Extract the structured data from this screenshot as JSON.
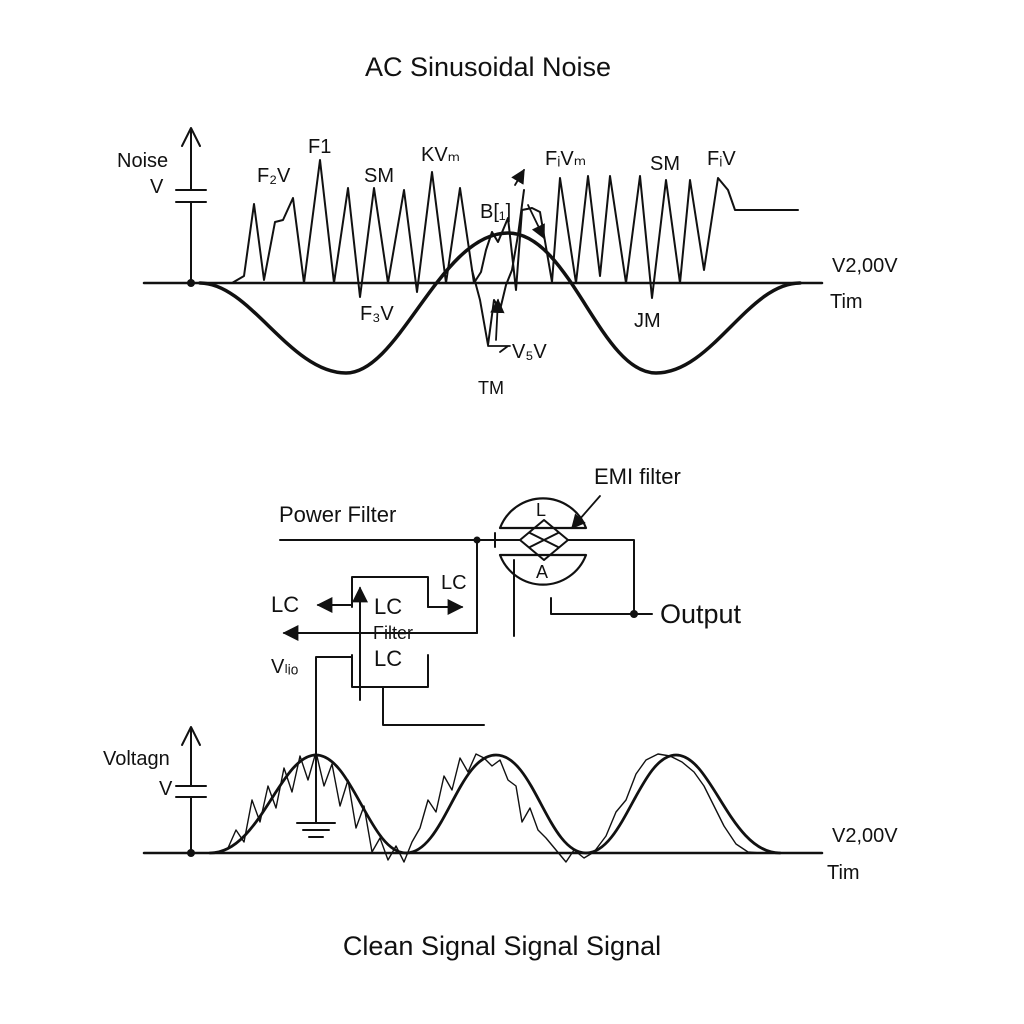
{
  "titles": {
    "top": "AC Sinusoidal Noise",
    "bottom": "Clean Signal Signal Signal"
  },
  "top_panel": {
    "axis_label": "Noise",
    "axis_unit": "V",
    "baseline_value": "V2,00V",
    "time_label": "Tim",
    "spike_labels": [
      "F₂V",
      "F1",
      "SM",
      "KVₘ",
      "FᵢVₘ",
      "SM",
      "FᵢV"
    ],
    "marker_labels": [
      "B[₁]",
      "F₃V",
      "V₅V",
      "TM",
      "JM"
    ]
  },
  "filter_panel": {
    "power_filter": "Power Filter",
    "emi_filter": "EMI filter",
    "emi_top": "L",
    "emi_bottom": "A",
    "output": "Output",
    "lc_top_right": "LC",
    "lc_left": "LC",
    "box_lc_top": "LC",
    "box_filter": "Filter",
    "box_lc_bottom": "LC",
    "v_label": "Vₗᵢₒ"
  },
  "bottom_panel": {
    "axis_label": "Voltagn",
    "axis_unit": "V",
    "baseline_value": "V2,00V",
    "time_label": "Tim"
  }
}
